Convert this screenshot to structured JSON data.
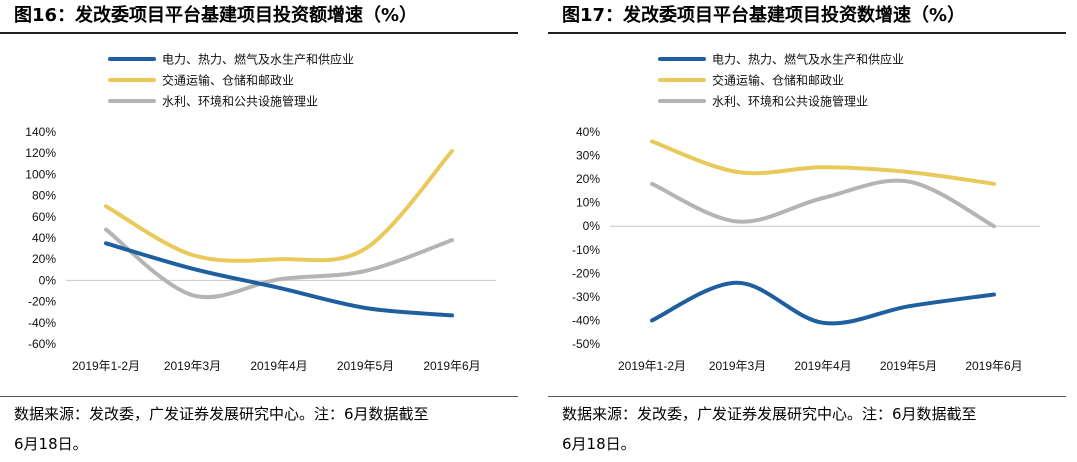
{
  "chart_data": [
    {
      "type": "line",
      "title": "图16：发改委项目平台基建项目投资额增速（%）",
      "categories": [
        "2019年1-2月",
        "2019年3月",
        "2019年4月",
        "2019年5月",
        "2019年6月"
      ],
      "ylim": [
        -60,
        140
      ],
      "yticks": [
        -60,
        -40,
        -20,
        0,
        20,
        40,
        60,
        80,
        100,
        120,
        140
      ],
      "ytick_labels": [
        "-60%",
        "-40%",
        "-20%",
        "0%",
        "20%",
        "40%",
        "60%",
        "80%",
        "100%",
        "120%",
        "140%"
      ],
      "grid": false,
      "legend_position": "top-left",
      "series": [
        {
          "name": "电力、热力、燃气及水生产和供应业",
          "color": "#1f5fa0",
          "values": [
            35,
            11,
            -7,
            -26,
            -33
          ]
        },
        {
          "name": "交通运输、仓储和邮政业",
          "color": "#e8c95a",
          "values": [
            70,
            24,
            20,
            30,
            122
          ]
        },
        {
          "name": "水利、环境和公共设施管理业",
          "color": "#b4b4b4",
          "values": [
            48,
            -14,
            1,
            9,
            38
          ]
        }
      ]
    },
    {
      "type": "line",
      "title": "图17：发改委项目平台基建项目投资数增速（%）",
      "categories": [
        "2019年1-2月",
        "2019年3月",
        "2019年4月",
        "2019年5月",
        "2019年6月"
      ],
      "ylim": [
        -50,
        40
      ],
      "yticks": [
        -50,
        -40,
        -30,
        -20,
        -10,
        0,
        10,
        20,
        30,
        40
      ],
      "ytick_labels": [
        "-50%",
        "-40%",
        "-30%",
        "-20%",
        "-10%",
        "0%",
        "10%",
        "20%",
        "30%",
        "40%"
      ],
      "grid": false,
      "legend_position": "top-left",
      "series": [
        {
          "name": "电力、热力、燃气及水生产和供应业",
          "color": "#1f5fa0",
          "values": [
            -40,
            -24,
            -41,
            -34,
            -29
          ]
        },
        {
          "name": "交通运输、仓储和邮政业",
          "color": "#e8c95a",
          "values": [
            36,
            23,
            25,
            23,
            18
          ]
        },
        {
          "name": "水利、环境和公共设施管理业",
          "color": "#b4b4b4",
          "values": [
            18,
            2,
            12,
            19,
            0
          ]
        }
      ]
    }
  ],
  "panels": [
    {
      "title_prefix": "图16",
      "title_text": "：发改委项目平台基建项目投资额增速（%）",
      "source_line1": "数据来源：发改委，广发证券发展研究中心。注：6月数据截至",
      "source_line2": "6月18日。"
    },
    {
      "title_prefix": "图17",
      "title_text": "：发改委项目平台基建项目投资数增速（%）",
      "source_line1": "数据来源：发改委，广发证券发展研究中心。注：6月数据截至",
      "source_line2": "6月18日。"
    }
  ]
}
